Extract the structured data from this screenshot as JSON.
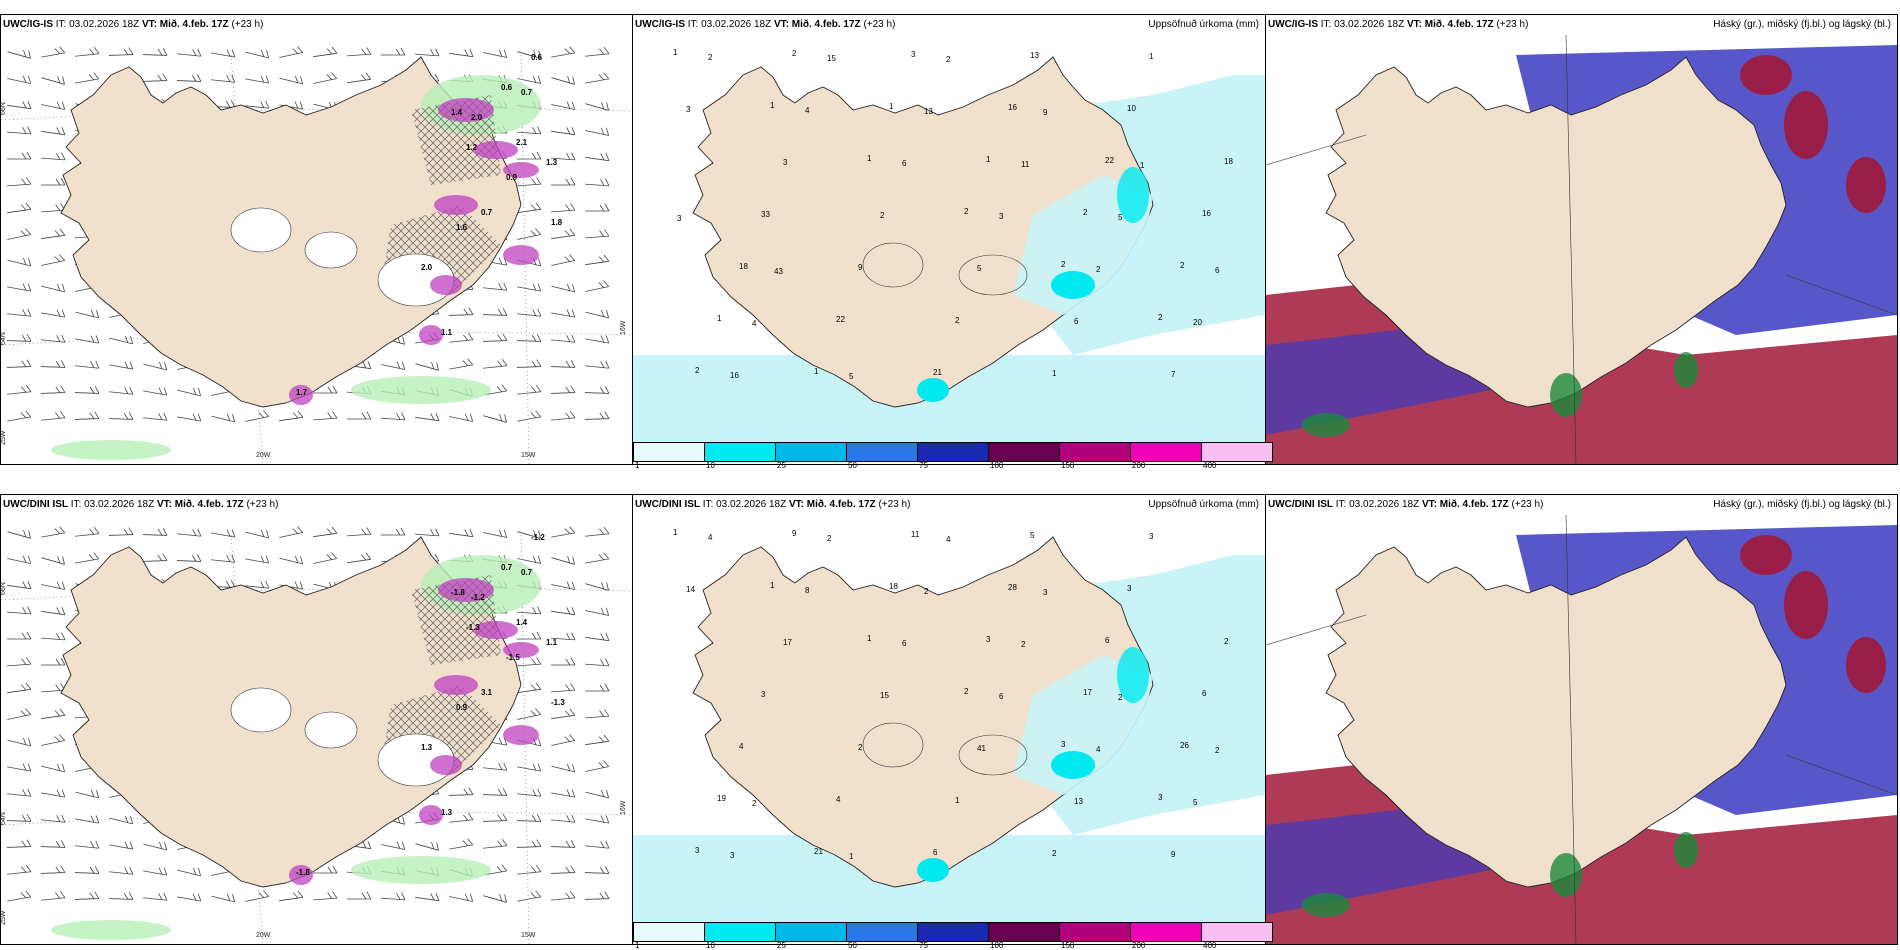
{
  "panels": [
    {
      "id": "p1",
      "header_model": "UWC/IG-IS",
      "header_it_label": "IT:",
      "header_it_value": "03.02.2026 18Z",
      "header_vt_label": "VT:",
      "header_vt_value": "Mið. 4.feb. 17Z",
      "header_lead": "(+23 h)",
      "right_title": "",
      "type": "wind",
      "grid_labels": {
        "lat_a": "66N",
        "lat_b": "64N",
        "lon_a": "20W",
        "lon_b": "15W",
        "corner": "25W",
        "edge": "16W"
      },
      "values": [
        "0.6",
        "0.6",
        "0.7",
        "1.4",
        "2.0",
        "2.1",
        "1.3",
        "1.2",
        "0.9",
        "0.7",
        "1.6",
        "2.0",
        "1.8",
        "1.1",
        "1.7"
      ]
    },
    {
      "id": "p2",
      "header_model": "UWC/IG-IS",
      "header_it_label": "IT:",
      "header_it_value": "03.02.2026 18Z",
      "header_vt_label": "VT:",
      "header_vt_value": "Mið. 4.feb. 17Z",
      "header_lead": "(+23 h)",
      "right_title": "Uppsöfnuð úrkoma (mm)",
      "type": "precip",
      "values": [
        "1",
        "1",
        "1",
        "2",
        "2",
        "2",
        "2",
        "2",
        "1",
        "1",
        "2",
        "2",
        "1",
        "1",
        "3",
        "16",
        "22",
        "16",
        "18",
        "22",
        "21",
        "13",
        "10",
        "18",
        "33",
        "9",
        "2",
        "1",
        "1",
        "3",
        "3",
        "2",
        "5",
        "6",
        "7",
        "2",
        "4",
        "6",
        "3",
        "2",
        "20",
        "16",
        "15",
        "13",
        "11",
        "5",
        "6",
        "4",
        "5",
        "2",
        "9",
        "1",
        "3",
        "43"
      ]
    },
    {
      "id": "p3",
      "header_model": "UWC/IG-IS",
      "header_it_label": "IT:",
      "header_it_value": "03.02.2026 18Z",
      "header_vt_label": "VT:",
      "header_vt_value": "Mið. 4.feb. 17Z",
      "header_lead": "(+23 h)",
      "right_title": "Háský (gr.), miðský (fj.bl.) og lágský (bl.)",
      "type": "cloud"
    },
    {
      "id": "p4",
      "header_model": "UWC/DINI ISL",
      "header_it_label": "IT:",
      "header_it_value": "03.02.2026 18Z",
      "header_vt_label": "VT:",
      "header_vt_value": "Mið. 4.feb. 17Z",
      "header_lead": "(+23 h)",
      "right_title": "",
      "type": "wind",
      "grid_labels": {
        "lat_a": "66N",
        "lat_b": "64N",
        "lon_a": "20W",
        "lon_b": "15W",
        "corner": "25W",
        "edge": "16W"
      },
      "values": [
        "-1.2",
        "0.7",
        "0.7",
        "-1.8",
        "-1.2",
        "1.4",
        "1.1",
        "-1.3",
        "-1.5",
        "3.1",
        "0.9",
        "1.3",
        "-1.3",
        "1.3",
        "-1.8"
      ]
    },
    {
      "id": "p5",
      "header_model": "UWC/DINI ISL",
      "header_it_label": "IT:",
      "header_it_value": "03.02.2026 18Z",
      "header_vt_label": "VT:",
      "header_vt_value": "Mið. 4.feb. 17Z",
      "header_lead": "(+23 h)",
      "right_title": "Uppsöfnuð úrkoma (mm)",
      "type": "precip",
      "values": [
        "1",
        "1",
        "1",
        "2",
        "3",
        "3",
        "3",
        "9",
        "18",
        "3",
        "17",
        "26",
        "19",
        "21",
        "11",
        "28",
        "6",
        "6",
        "4",
        "4",
        "6",
        "5",
        "3",
        "2",
        "3",
        "2",
        "1",
        "2",
        "3",
        "14",
        "17",
        "15",
        "41",
        "13",
        "9",
        "4",
        "8",
        "6",
        "6",
        "4",
        "5",
        "3",
        "2",
        "2",
        "2",
        "2",
        "2",
        "2",
        "1",
        "4",
        "3"
      ]
    },
    {
      "id": "p6",
      "header_model": "UWC/DINI ISL",
      "header_it_label": "IT:",
      "header_it_value": "03.02.2026 18Z",
      "header_vt_label": "VT:",
      "header_vt_value": "Mið. 4.feb. 17Z",
      "header_lead": "(+23 h)",
      "right_title": "Háský (gr.), miðský (fj.bl.) og lágský (bl.)",
      "type": "cloud"
    }
  ],
  "colorbar": {
    "ticks": [
      "1",
      "10",
      "25",
      "50",
      "75",
      "100",
      "150",
      "200",
      "400"
    ],
    "colors": [
      "#e8fafc",
      "#00e8f0",
      "#00b8e8",
      "#2a78e8",
      "#1a2ab0",
      "#6a0050",
      "#b0007a",
      "#f000b8",
      "#f8c0f0"
    ]
  },
  "colors": {
    "land": "#f0e0cc",
    "coast": "#222222",
    "sea": "#ffffff",
    "precip_light": "#c8f4f8",
    "precip_mid": "#00e8f0",
    "high_cloud": "#3a3ac0",
    "mid_cloud": "#a01838",
    "low_cloud": "#1a8a3a",
    "wind_green": "#b8f0b8",
    "hatch": "#555555",
    "magenta": "#c040c0"
  }
}
